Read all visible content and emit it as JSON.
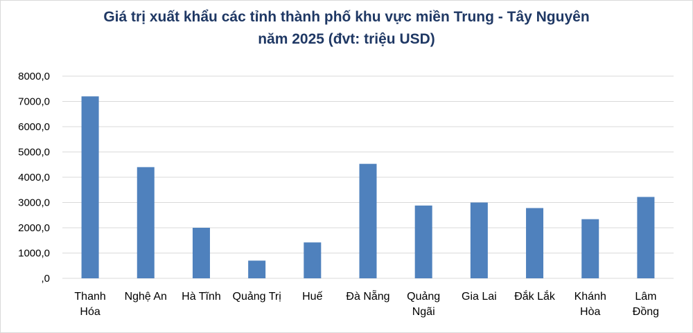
{
  "chart_data": {
    "type": "bar",
    "title_line1": "Giá trị xuất khẩu các tỉnh thành phố khu vực miền Trung - Tây Nguyên",
    "title_line2": "năm 2025 (đvt: triệu USD)",
    "categories": [
      [
        "Thanh",
        "Hóa"
      ],
      [
        "Nghệ An"
      ],
      [
        "Hà Tĩnh"
      ],
      [
        "Quảng Trị"
      ],
      [
        "Huế"
      ],
      [
        "Đà Nẵng"
      ],
      [
        "Quảng",
        "Ngãi"
      ],
      [
        "Gia Lai"
      ],
      [
        "Đắk Lắk"
      ],
      [
        "Khánh",
        "Hòa"
      ],
      [
        "Lâm",
        "Đồng"
      ]
    ],
    "values": [
      7200,
      4400,
      2000,
      700,
      1420,
      4530,
      2880,
      3000,
      2780,
      2340,
      3220
    ],
    "ylim": [
      0,
      8000
    ],
    "yticks": [
      0,
      1000,
      2000,
      3000,
      4000,
      5000,
      6000,
      7000,
      8000
    ],
    "ytick_labels": [
      ",0",
      "1000,0",
      "2000,0",
      "3000,0",
      "4000,0",
      "5000,0",
      "6000,0",
      "7000,0",
      "8000,0"
    ],
    "bar_color": "#4f81bd",
    "grid_color": "#d9d9d9",
    "grid": true,
    "legend": "none"
  }
}
